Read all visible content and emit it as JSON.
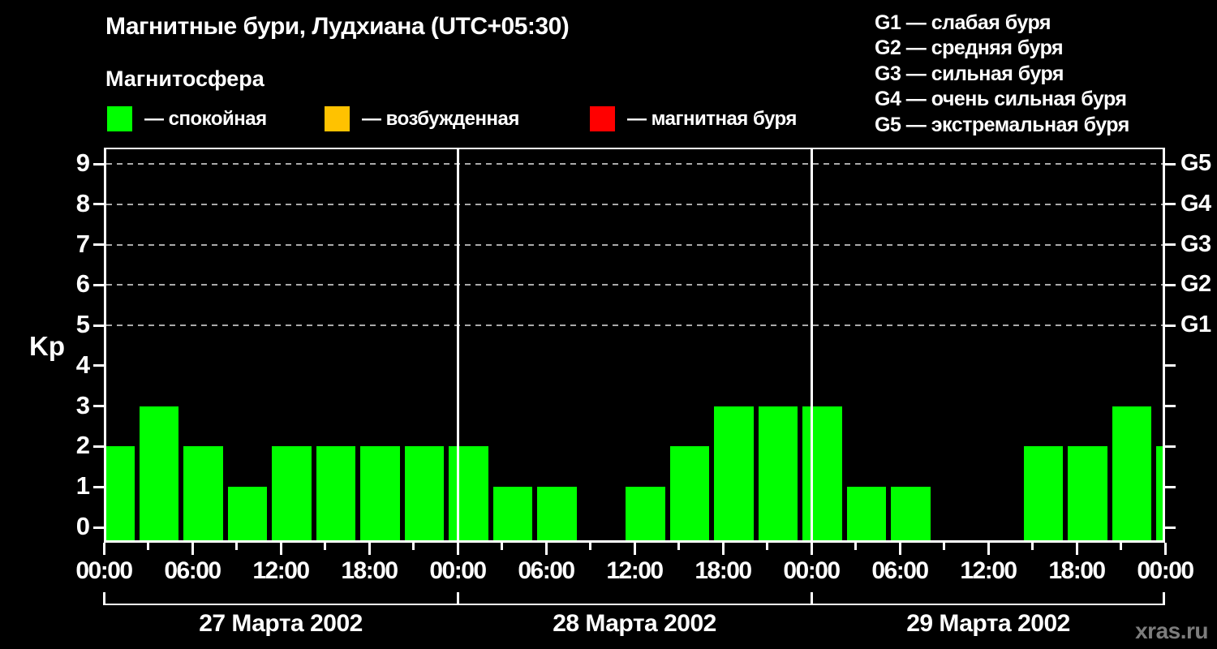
{
  "header": {
    "title": "Магнитные бури, Лудхиана (UTC+05:30)",
    "subtitle": "Магнитосфера",
    "legend": [
      {
        "name": "quiet",
        "color": "#00ff00",
        "label": "— спокойная"
      },
      {
        "name": "excited",
        "color": "#ffc200",
        "label": "— возбужденная"
      },
      {
        "name": "storm",
        "color": "#ff0000",
        "label": "— магнитная буря"
      }
    ]
  },
  "g_legend": [
    {
      "label": "G1 — слабая буря"
    },
    {
      "label": "G2 — средняя буря"
    },
    {
      "label": "G3 — сильная буря"
    },
    {
      "label": "G4 — очень сильная буря"
    },
    {
      "label": "G5 — экстремальная буря"
    }
  ],
  "chart_data": {
    "type": "bar",
    "title": "Магнитные бури, Лудхиана (UTC+05:30)",
    "ylabel": "Kp",
    "ylim": [
      0,
      9
    ],
    "y_tick_labels": [
      "0",
      "1",
      "2",
      "3",
      "4",
      "5",
      "6",
      "7",
      "8",
      "9"
    ],
    "grid_levels": [
      5,
      6,
      7,
      8,
      9
    ],
    "grid_style": "dashed",
    "right_axis_labels": [
      {
        "kp": 5,
        "label": "G1"
      },
      {
        "kp": 6,
        "label": "G2"
      },
      {
        "kp": 7,
        "label": "G3"
      },
      {
        "kp": 8,
        "label": "G4"
      },
      {
        "kp": 9,
        "label": "G5"
      }
    ],
    "slot_hours": 3,
    "x_tick_labels": [
      {
        "hour": 0,
        "label": "00:00"
      },
      {
        "hour": 6,
        "label": "06:00"
      },
      {
        "hour": 12,
        "label": "12:00"
      },
      {
        "hour": 18,
        "label": "18:00"
      },
      {
        "hour": 24,
        "label": "00:00"
      },
      {
        "hour": 30,
        "label": "06:00"
      },
      {
        "hour": 36,
        "label": "12:00"
      },
      {
        "hour": 42,
        "label": "18:00"
      },
      {
        "hour": 48,
        "label": "00:00"
      },
      {
        "hour": 54,
        "label": "06:00"
      },
      {
        "hour": 60,
        "label": "12:00"
      },
      {
        "hour": 66,
        "label": "18:00"
      },
      {
        "hour": 72,
        "label": "00:00"
      }
    ],
    "days": [
      {
        "date": "27 Марта 2002",
        "values": [
          2,
          3,
          2,
          1,
          2,
          2,
          2,
          2
        ]
      },
      {
        "date": "28 Марта 2002",
        "values": [
          2,
          1,
          1,
          0,
          1,
          2,
          3,
          3
        ]
      },
      {
        "date": "29 Марта 2002",
        "values": [
          3,
          1,
          1,
          0,
          0,
          2,
          2,
          3
        ]
      }
    ],
    "next_period_partial_value": 2,
    "bar_colors": {
      "quiet": "#00ff00",
      "excited": "#ffc200",
      "storm": "#ff0000"
    },
    "color_rule": {
      "quiet_below": 4,
      "excited_below": 5
    }
  },
  "watermark": "xras.ru"
}
